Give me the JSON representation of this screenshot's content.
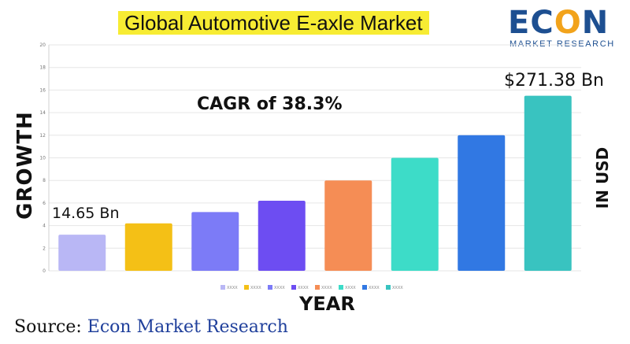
{
  "chart_data": {
    "type": "bar",
    "title": "Global Automotive E-axle Market",
    "xlabel": "YEAR",
    "ylabel": "GROWTH",
    "y2label": "IN USD",
    "ylim": [
      0,
      20
    ],
    "yticks": [
      0,
      2,
      4,
      6,
      8,
      10,
      12,
      14,
      16,
      18,
      20
    ],
    "grid": true,
    "legend_position": "bottom",
    "categories": [
      "XXXX",
      "XXXX",
      "XXXX",
      "XXXX",
      "XXXX",
      "XXXX",
      "XXXX",
      "XXXX"
    ],
    "values": [
      3.2,
      4.2,
      5.2,
      6.2,
      8.0,
      10.0,
      12.0,
      15.5
    ],
    "colors": [
      "#b9b7f5",
      "#f4c016",
      "#7c7bf7",
      "#6d4df2",
      "#f58d55",
      "#3ddcc8",
      "#3178e3",
      "#39c3c0"
    ],
    "annotations": {
      "cagr": "CAGR of 38.3%",
      "first_value": "14.65 Bn",
      "last_value": "$271.38 Bn"
    }
  },
  "logo": {
    "word": [
      "E",
      "C",
      "O",
      "N"
    ],
    "subtitle": "MARKET RESEARCH"
  },
  "source": {
    "label": "Source:",
    "name": "Econ Market Research"
  }
}
